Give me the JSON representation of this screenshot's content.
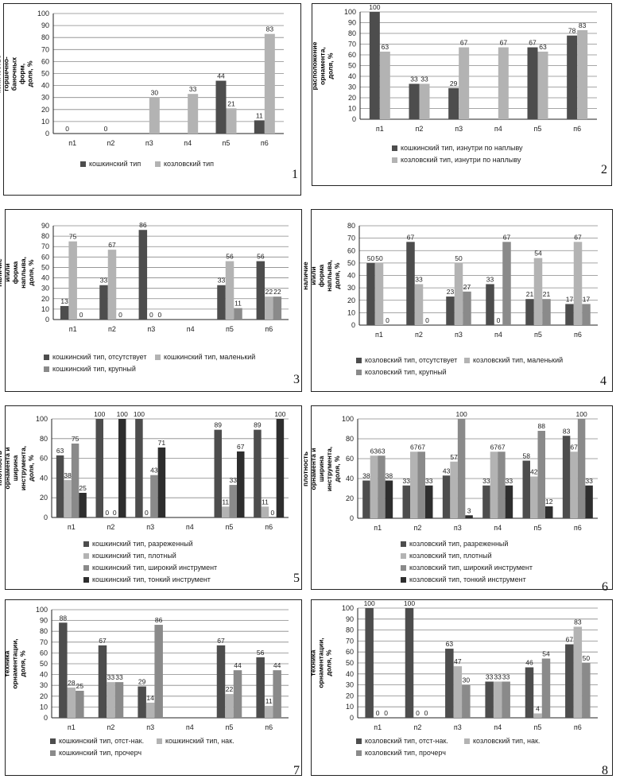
{
  "colors": {
    "dark": "#4d4d4d",
    "light": "#b3b3b3",
    "mid": "#8a8a8a",
    "darker": "#2e2e2e",
    "grid": "#888888",
    "axis": "#222222"
  },
  "chart_data": [
    {
      "id": 1,
      "type": "bar",
      "panel_number": "1",
      "ylabel": "количество горшечно-баночных форм, доля, %",
      "ylim": [
        0,
        100
      ],
      "ytick_step": 10,
      "categories": [
        "п1",
        "п2",
        "п3",
        "п4",
        "п5",
        "п6"
      ],
      "series": [
        {
          "name": "кошкинский тип",
          "color": "#4d4d4d",
          "values": [
            0,
            0,
            null,
            null,
            44,
            11
          ]
        },
        {
          "name": "козловский тип",
          "color": "#b3b3b3",
          "values": [
            null,
            null,
            30,
            33,
            21,
            83
          ]
        }
      ],
      "legend_rows": [
        [
          0,
          1
        ]
      ]
    },
    {
      "id": 2,
      "type": "bar",
      "panel_number": "2",
      "ylabel": "расположение орнамента, доля, %",
      "ylim": [
        0,
        100
      ],
      "ytick_step": 10,
      "categories": [
        "п1",
        "п2",
        "п3",
        "п4",
        "п5",
        "п6"
      ],
      "series": [
        {
          "name": "кошкинский тип, изнутри по наплыву",
          "color": "#4d4d4d",
          "values": [
            100,
            33,
            29,
            null,
            67,
            78
          ]
        },
        {
          "name": "козловский тип, изнутри по наплыву",
          "color": "#b3b3b3",
          "values": [
            63,
            33,
            67,
            67,
            63,
            83
          ]
        }
      ],
      "legend_rows": [
        [
          0
        ],
        [
          1
        ]
      ]
    },
    {
      "id": 3,
      "type": "bar",
      "panel_number": "3",
      "ylabel": "наличие и/или форма наплыва, доля, %",
      "ylim": [
        0,
        90
      ],
      "ytick_step": 10,
      "categories": [
        "п1",
        "п2",
        "п3",
        "п4",
        "п5",
        "п6"
      ],
      "series": [
        {
          "name": "кошкинский тип, отсутствует",
          "color": "#4d4d4d",
          "values": [
            13,
            33,
            86,
            null,
            33,
            56
          ]
        },
        {
          "name": "кошкинский тип, маленький",
          "color": "#b3b3b3",
          "values": [
            75,
            67,
            0,
            null,
            56,
            22
          ]
        },
        {
          "name": "кошкинский тип, крупный",
          "color": "#8a8a8a",
          "values": [
            0,
            0,
            0,
            null,
            11,
            22
          ]
        }
      ],
      "legend_rows": [
        [
          0,
          1
        ],
        [
          2
        ]
      ]
    },
    {
      "id": 4,
      "type": "bar",
      "panel_number": "4",
      "ylabel": "наличие и/или форма наплыва, доля, %",
      "ylim": [
        0,
        80
      ],
      "ytick_step": 10,
      "categories": [
        "п1",
        "п2",
        "п3",
        "п4",
        "п5",
        "п6"
      ],
      "series": [
        {
          "name": "козловский тип, отсутствует",
          "color": "#4d4d4d",
          "values": [
            50,
            67,
            23,
            33,
            21,
            17
          ]
        },
        {
          "name": "козловский тип, маленький",
          "color": "#b3b3b3",
          "values": [
            50,
            33,
            50,
            0,
            54,
            67
          ]
        },
        {
          "name": "козловский тип, крупный",
          "color": "#8a8a8a",
          "values": [
            0,
            0,
            27,
            67,
            21,
            17
          ]
        }
      ],
      "legend_rows": [
        [
          0,
          1
        ],
        [
          2
        ]
      ]
    },
    {
      "id": 5,
      "type": "bar",
      "panel_number": "5",
      "ylabel": "плотность орнамента и ширина инструмента, доля, %",
      "ylim": [
        0,
        100
      ],
      "ytick_step": 20,
      "categories": [
        "п1",
        "п2",
        "п3",
        "п4",
        "п5",
        "п6"
      ],
      "series": [
        {
          "name": "кошкинский тип, разреженный",
          "color": "#4d4d4d",
          "values": [
            63,
            100,
            100,
            null,
            89,
            89
          ]
        },
        {
          "name": "кошкинский тип, плотный",
          "color": "#b3b3b3",
          "values": [
            38,
            0,
            0,
            null,
            11,
            11
          ]
        },
        {
          "name": "кошкинский тип, широкий инструмент",
          "color": "#8a8a8a",
          "values": [
            75,
            0,
            43,
            null,
            33,
            0
          ]
        },
        {
          "name": "кошкинский тип, тонкий инструмент",
          "color": "#2e2e2e",
          "values": [
            25,
            100,
            71,
            null,
            67,
            100
          ]
        }
      ],
      "legend_rows": [
        [
          0
        ],
        [
          1
        ],
        [
          2
        ],
        [
          3
        ]
      ]
    },
    {
      "id": 6,
      "type": "bar",
      "panel_number": "6",
      "ylabel": "плотность орнамента и ширина инструмента, доля, %",
      "ylim": [
        0,
        100
      ],
      "ytick_step": 20,
      "categories": [
        "п1",
        "п2",
        "п3",
        "п4",
        "п5",
        "п6"
      ],
      "series": [
        {
          "name": "козловский тип, разреженный",
          "color": "#4d4d4d",
          "values": [
            38,
            33,
            43,
            33,
            58,
            83
          ]
        },
        {
          "name": "козловский тип, плотный",
          "color": "#b3b3b3",
          "values": [
            63,
            67,
            57,
            67,
            42,
            67
          ]
        },
        {
          "name": "козловский тип, широкий инструмент",
          "color": "#8a8a8a",
          "values": [
            63,
            67,
            100,
            67,
            88,
            100
          ]
        },
        {
          "name": "козловский тип, тонкий инструмент",
          "color": "#2e2e2e",
          "values": [
            38,
            33,
            3,
            33,
            12,
            33
          ]
        }
      ],
      "legend_rows": [
        [
          0
        ],
        [
          1
        ],
        [
          2
        ],
        [
          3
        ]
      ]
    },
    {
      "id": 7,
      "type": "bar",
      "panel_number": "7",
      "ylabel": "техника орнаментации, доля, %",
      "ylim": [
        0,
        100
      ],
      "ytick_step": 10,
      "categories": [
        "п1",
        "п2",
        "п3",
        "п4",
        "п5",
        "п6"
      ],
      "series": [
        {
          "name": "кошкинский тип, отст-нак.",
          "color": "#4d4d4d",
          "values": [
            88,
            67,
            29,
            null,
            67,
            56
          ]
        },
        {
          "name": "кошкинский тип, нак.",
          "color": "#b3b3b3",
          "values": [
            28,
            33,
            14,
            null,
            22,
            11
          ]
        },
        {
          "name": "кошкинский тип, прочерч",
          "color": "#8a8a8a",
          "values": [
            25,
            33,
            86,
            null,
            44,
            44
          ]
        }
      ],
      "legend_rows": [
        [
          0,
          1
        ],
        [
          2
        ]
      ]
    },
    {
      "id": 8,
      "type": "bar",
      "panel_number": "8",
      "ylabel": "техника орнаментации, доля, %",
      "ylim": [
        0,
        100
      ],
      "ytick_step": 10,
      "categories": [
        "п1",
        "п2",
        "п3",
        "п4",
        "п5",
        "п6"
      ],
      "series": [
        {
          "name": "козловский тип, отст-нак.",
          "color": "#4d4d4d",
          "values": [
            100,
            100,
            63,
            33,
            46,
            67
          ]
        },
        {
          "name": "козловский тип, нак.",
          "color": "#b3b3b3",
          "values": [
            0,
            0,
            47,
            33,
            4,
            83
          ]
        },
        {
          "name": "козловский тип, прочерч",
          "color": "#8a8a8a",
          "values": [
            0,
            0,
            30,
            33,
            54,
            50
          ]
        }
      ],
      "legend_rows": [
        [
          0,
          1
        ],
        [
          2
        ]
      ]
    }
  ]
}
